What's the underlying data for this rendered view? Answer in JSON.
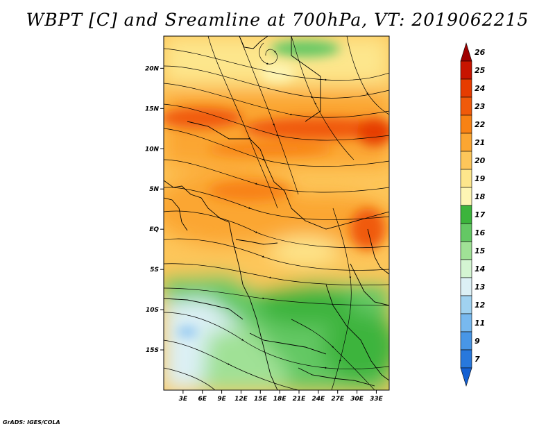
{
  "title": "WBPT [C] and Sreamline at 700hPa, VT: 2019062215",
  "footer": "GrADS: IGES/COLA",
  "map": {
    "lon_range": [
      0,
      35
    ],
    "lat_range": [
      -20,
      24
    ],
    "y_ticks": [
      {
        "label": "20N",
        "lat": 20
      },
      {
        "label": "15N",
        "lat": 15
      },
      {
        "label": "10N",
        "lat": 10
      },
      {
        "label": "5N",
        "lat": 5
      },
      {
        "label": "EQ",
        "lat": 0
      },
      {
        "label": "5S",
        "lat": -5
      },
      {
        "label": "10S",
        "lat": -10
      },
      {
        "label": "15S",
        "lat": -15
      }
    ],
    "x_ticks": [
      {
        "label": "3E",
        "lon": 3
      },
      {
        "label": "6E",
        "lon": 6
      },
      {
        "label": "9E",
        "lon": 9
      },
      {
        "label": "12E",
        "lon": 12
      },
      {
        "label": "15E",
        "lon": 15
      },
      {
        "label": "18E",
        "lon": 18
      },
      {
        "label": "21E",
        "lon": 21
      },
      {
        "label": "24E",
        "lon": 24
      },
      {
        "label": "27E",
        "lon": 27
      },
      {
        "label": "30E",
        "lon": 30
      },
      {
        "label": "33E",
        "lon": 33
      }
    ]
  },
  "colorbar": {
    "levels": [
      "26",
      "25",
      "24",
      "23",
      "22",
      "21",
      "20",
      "19",
      "18",
      "17",
      "16",
      "15",
      "14",
      "13",
      "12",
      "11",
      "9",
      "7"
    ],
    "colors": [
      "#a00000",
      "#c81400",
      "#e63c00",
      "#f05a0a",
      "#f88214",
      "#fba632",
      "#fdc65a",
      "#fde68c",
      "#fdf5b4",
      "#3cb43c",
      "#64c864",
      "#a0e196",
      "#d4f5d2",
      "#dcf0f5",
      "#a0d2f0",
      "#78b9ef",
      "#4896e6",
      "#2878dc",
      "#1460d2"
    ]
  }
}
